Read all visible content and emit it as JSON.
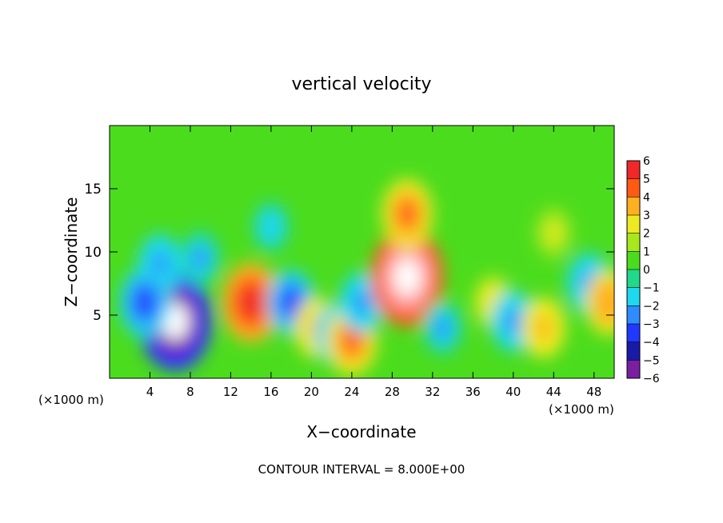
{
  "chart_data": {
    "type": "heatmap",
    "title": "vertical velocity",
    "xlabel": "X−coordinate",
    "ylabel": "Z−coordinate",
    "x_unit_left": "(×1000 m)",
    "x_unit_right": "(×1000 m)",
    "xlim": [
      0,
      50
    ],
    "ylim": [
      0,
      20
    ],
    "x_ticks": [
      4,
      8,
      12,
      16,
      20,
      24,
      28,
      32,
      36,
      40,
      44,
      48
    ],
    "y_ticks": [
      5,
      10,
      15
    ],
    "colorbar": {
      "min": -6,
      "max": 6,
      "labels": [
        "6",
        "5",
        "4",
        "3",
        "2",
        "1",
        "0",
        "−1",
        "−2",
        "−3",
        "−4",
        "−5",
        "−6"
      ]
    },
    "contour_note": "CONTOUR INTERVAL = 8.000E+00",
    "features": [
      {
        "x": 6.5,
        "z": 4.5,
        "w": -7
      },
      {
        "x": 5.0,
        "z": 9.0,
        "w": -3
      },
      {
        "x": 3.5,
        "z": 6.0,
        "w": -4
      },
      {
        "x": 9.0,
        "z": 9.5,
        "w": -2.5
      },
      {
        "x": 14.0,
        "z": 6.0,
        "w": 5
      },
      {
        "x": 18.0,
        "z": 6.0,
        "w": -3.5
      },
      {
        "x": 20.5,
        "z": 4.0,
        "w": 3
      },
      {
        "x": 22.5,
        "z": 3.5,
        "w": -3
      },
      {
        "x": 24.0,
        "z": 3.0,
        "w": 4
      },
      {
        "x": 25.0,
        "z": 6.0,
        "w": -3
      },
      {
        "x": 29.5,
        "z": 8.0,
        "w": 7
      },
      {
        "x": 29.5,
        "z": 13.0,
        "w": 4
      },
      {
        "x": 33.0,
        "z": 4.0,
        "w": -2.5
      },
      {
        "x": 38.0,
        "z": 6.0,
        "w": 2.5
      },
      {
        "x": 40.0,
        "z": 4.5,
        "w": -3
      },
      {
        "x": 43.0,
        "z": 4.0,
        "w": 3
      },
      {
        "x": 47.5,
        "z": 7.5,
        "w": -3
      },
      {
        "x": 49.5,
        "z": 6.0,
        "w": 3.5
      },
      {
        "x": 16.0,
        "z": 12.0,
        "w": -2
      },
      {
        "x": 44.0,
        "z": 11.5,
        "w": 1.8
      }
    ]
  }
}
